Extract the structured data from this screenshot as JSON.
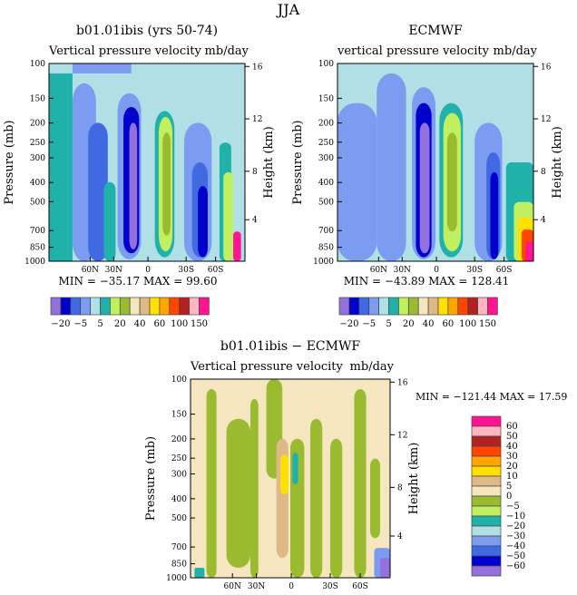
{
  "chart_data": [
    {
      "type": "heatmap",
      "panel": "model",
      "title": "b01.01ibis (yrs 50-74)",
      "subtitle_left": "Vertical pressure velocity",
      "subtitle_right": "mb/day",
      "ylabel": "Pressure (mb)",
      "ylabel_right": "Height (km)",
      "yticks": [
        "100",
        "150",
        "200",
        "250",
        "300",
        "400",
        "500",
        "700",
        "850",
        "1000"
      ],
      "yticks_right": [
        "16",
        "12",
        "8",
        "4"
      ],
      "xticks": [
        "60N",
        "30N",
        "0",
        "30S",
        "60S"
      ],
      "stats": "MIN = −35.17   MAX =   99.60",
      "levels": [
        "−20",
        "−5",
        "5",
        "20",
        "40",
        "60",
        "100",
        "150"
      ]
    },
    {
      "type": "heatmap",
      "panel": "obs",
      "title": "ECMWF",
      "subtitle_left": "vertical pressure velocity",
      "subtitle_right": "mb/day",
      "ylabel": "Pressure (mb)",
      "ylabel_right": "Height (km)",
      "yticks": [
        "100",
        "150",
        "200",
        "250",
        "300",
        "400",
        "500",
        "700",
        "850",
        "1000"
      ],
      "yticks_right": [
        "16",
        "12",
        "8",
        "4"
      ],
      "xticks": [
        "60N",
        "30N",
        "0",
        "30S",
        "60S"
      ],
      "stats": "MIN = −43.89   MAX = 128.41",
      "levels": [
        "−20",
        "−5",
        "5",
        "20",
        "40",
        "60",
        "100",
        "150"
      ]
    },
    {
      "type": "heatmap",
      "panel": "diff",
      "title": "b01.01ibis − ECMWF",
      "subtitle_left": "Vertical pressure velocity",
      "subtitle_right": "mb/day",
      "ylabel": "Pressure (mb)",
      "ylabel_right": "Height (km)",
      "yticks": [
        "100",
        "150",
        "200",
        "250",
        "300",
        "400",
        "500",
        "700",
        "850",
        "1000"
      ],
      "yticks_right": [
        "16",
        "12",
        "8",
        "4"
      ],
      "xticks": [
        "60N",
        "30N",
        "0",
        "30S",
        "60S"
      ],
      "stats": "MIN = −121.44   MAX =   17.59",
      "levels": [
        "60",
        "50",
        "40",
        "30",
        "20",
        "10",
        "5",
        "0",
        "−5",
        "−10",
        "−20",
        "−30",
        "−40",
        "−50",
        "−60"
      ]
    }
  ],
  "header": {
    "season": "JJA"
  },
  "colors": [
    "#9370db",
    "#0000cd",
    "#4169e1",
    "#7b9cf0",
    "#b0e0e6",
    "#20b2aa",
    "#c0f060",
    "#9aba30",
    "#f5e6c0",
    "#deb887",
    "#ffe000",
    "#ffa500",
    "#ff4500",
    "#b22222",
    "#ffb6c1",
    "#ff1493"
  ]
}
